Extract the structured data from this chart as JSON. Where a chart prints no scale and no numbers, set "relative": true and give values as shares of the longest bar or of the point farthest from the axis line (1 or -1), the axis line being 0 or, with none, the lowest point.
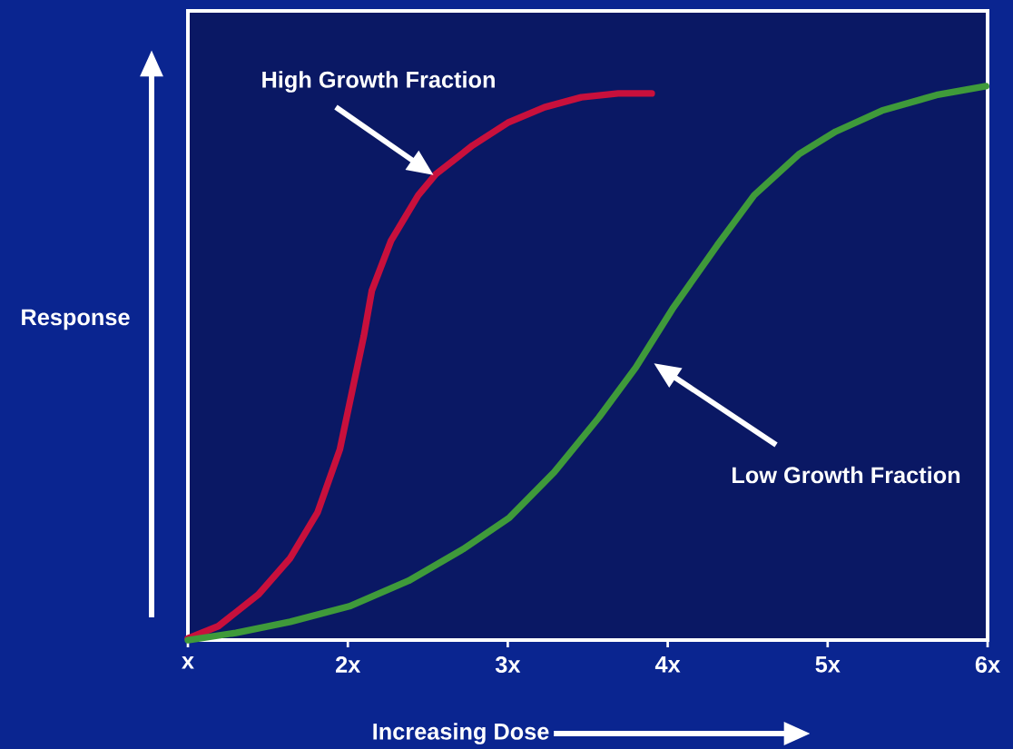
{
  "chart_data": {
    "type": "line",
    "relative": true,
    "xlabel": "Increasing Dose",
    "ylabel": "Response",
    "xlim": [
      1,
      6
    ],
    "xticks": [
      {
        "value": 1,
        "label": "x"
      },
      {
        "value": 2,
        "label": "2x"
      },
      {
        "value": 3,
        "label": "3x"
      },
      {
        "value": 4,
        "label": "4x"
      },
      {
        "value": 5,
        "label": "5x"
      },
      {
        "value": 6,
        "label": "6x"
      }
    ],
    "x": [
      1.0,
      1.19,
      1.44,
      1.64,
      1.81,
      1.95,
      2.04,
      2.1,
      2.15,
      2.27,
      2.44,
      2.55,
      2.78,
      3.0,
      3.23,
      3.46,
      3.69,
      3.9
    ],
    "series": [
      {
        "color": "#c8103c",
        "values": [
          0.003,
          0.025,
          0.082,
          0.148,
          0.23,
          0.344,
          0.467,
          0.549,
          0.631,
          0.721,
          0.803,
          0.841,
          0.893,
          0.934,
          0.962,
          0.98,
          0.987,
          0.987
        ]
      },
      {
        "color": "#3f9a3a",
        "x": [
          1.0,
          1.3,
          1.64,
          2.01,
          2.38,
          2.72,
          3.01,
          3.29,
          3.57,
          3.8,
          4.03,
          4.31,
          4.54,
          4.82,
          5.05,
          5.34,
          5.68,
          5.99
        ],
        "values": [
          0,
          0.013,
          0.033,
          0.061,
          0.107,
          0.164,
          0.221,
          0.303,
          0.402,
          0.492,
          0.598,
          0.713,
          0.803,
          0.877,
          0.918,
          0.956,
          0.984,
          1.0
        ]
      }
    ],
    "annotations": [
      "High Growth Fraction",
      "Low Growth Fraction"
    ],
    "marker": "none",
    "line_style": "solid"
  }
}
